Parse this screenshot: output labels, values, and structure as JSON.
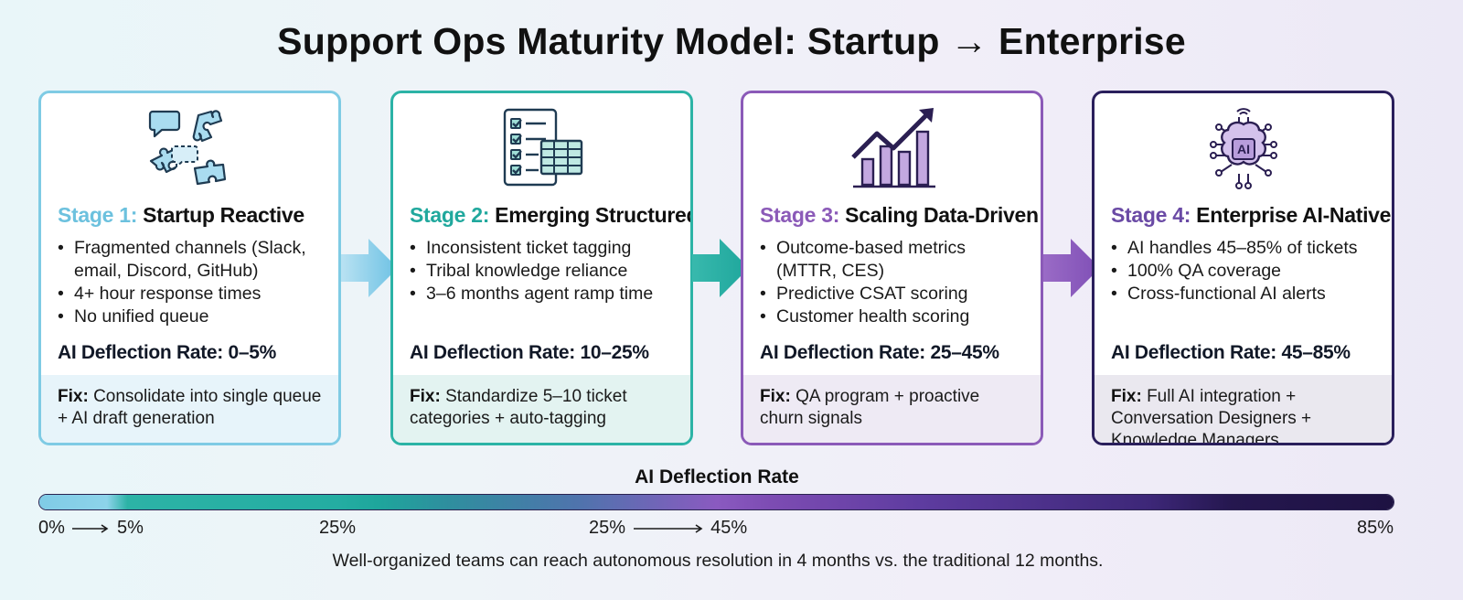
{
  "title": "Support Ops Maturity Model: Startup → Enterprise",
  "stages": [
    {
      "stage_label": "Stage 1:",
      "name": "Startup Reactive",
      "icon": "chat-puzzle-icon",
      "bullets": [
        "Fragmented channels (Slack,",
        "email, Discord, GitHub)",
        "4+ hour response times",
        "No unified queue"
      ],
      "rate": "AI Deflection Rate: 0–5%",
      "fix_label": "Fix:",
      "fix_text": "Consolidate into single queue + AI draft generation",
      "color": "#6cc1de"
    },
    {
      "stage_label": "Stage 2:",
      "name": "Emerging Structured",
      "icon": "checklist-table-icon",
      "bullets": [
        "Inconsistent ticket tagging",
        "Tribal knowledge reliance",
        "3–6 months agent ramp time"
      ],
      "rate": "AI Deflection Rate: 10–25%",
      "fix_label": "Fix:",
      "fix_text": "Standardize 5–10 ticket categories + auto-tagging",
      "color": "#20a89d"
    },
    {
      "stage_label": "Stage 3:",
      "name": "Scaling Data-Driven",
      "icon": "growth-chart-icon",
      "bullets": [
        "Outcome-based metrics",
        "(MTTR, CES)",
        "Predictive CSAT scoring",
        "Customer health scoring"
      ],
      "rate": "AI Deflection Rate: 25–45%",
      "fix_label": "Fix:",
      "fix_text": "QA program + proactive churn signals",
      "color": "#8b5ab8"
    },
    {
      "stage_label": "Stage 4:",
      "name": "Enterprise AI-Native",
      "icon": "ai-brain-icon",
      "bullets": [
        "AI handles 45–85% of tickets",
        "100% QA coverage",
        "Cross-functional AI alerts"
      ],
      "rate": "AI Deflection Rate: 45–85%",
      "fix_label": "Fix:",
      "fix_text": "Full AI integration + Conversation Designers + Knowledge Managers",
      "color": "#2a1f5c"
    }
  ],
  "scale": {
    "label": "AI Deflection Rate",
    "ticks": {
      "t0": "0%",
      "t5": "5%",
      "t25a": "25%",
      "t25b": "25%",
      "t45": "45%",
      "t85": "85%"
    }
  },
  "footnote": "Well-organized teams can reach autonomous resolution in 4 months vs. the traditional 12 months."
}
